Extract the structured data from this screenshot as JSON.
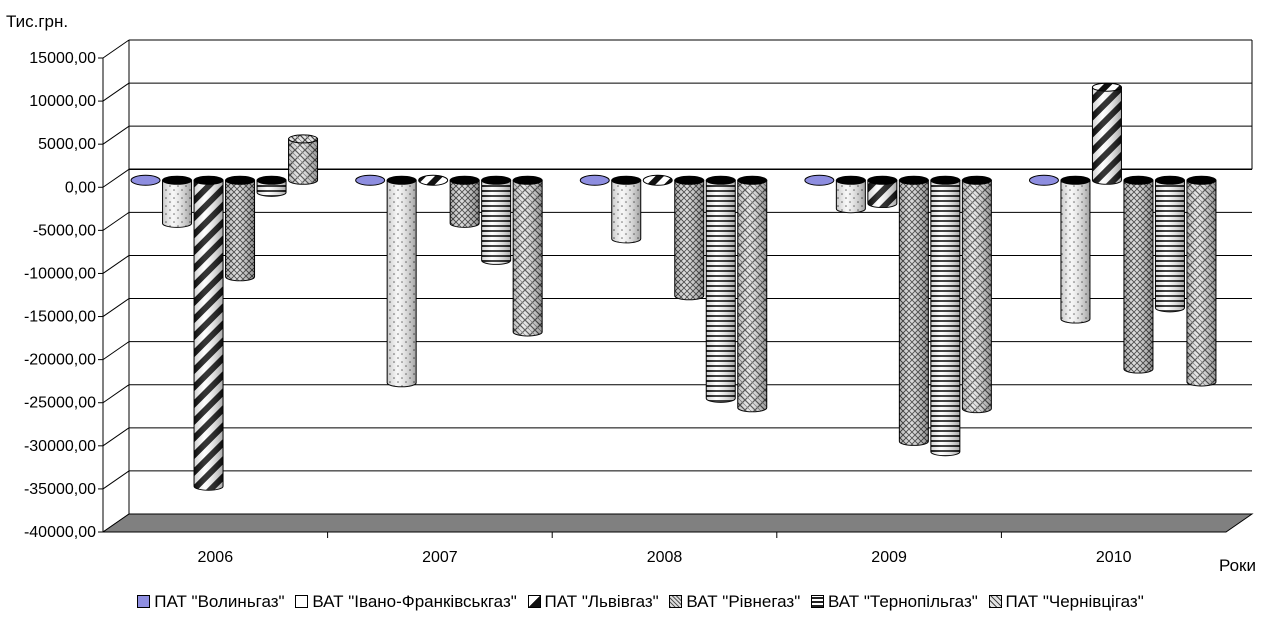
{
  "chart_data": {
    "type": "bar",
    "title": "",
    "ylabel": "Тис.грн.",
    "xlabel": "Роки",
    "categories": [
      "2006",
      "2007",
      "2008",
      "2009",
      "2010"
    ],
    "ylim": [
      -40000,
      15000
    ],
    "yticks": [
      15000,
      10000,
      5000,
      0,
      -5000,
      -10000,
      -15000,
      -20000,
      -25000,
      -30000,
      -35000,
      -40000
    ],
    "ytick_labels": [
      "15000,00",
      "10000,00",
      "5000,00",
      "0,00",
      "-5000,00",
      "-10000,00",
      "-15000,00",
      "-20000,00",
      "-25000,00",
      "-30000,00",
      "-35000,00",
      "-40000,00"
    ],
    "grid": true,
    "legend_position": "bottom",
    "series": [
      {
        "name": "ПАТ \"Волиньгаз\"",
        "values": [
          0,
          0,
          0,
          0,
          0
        ]
      },
      {
        "name": "ВАТ \"Івано-Франківськгаз\"",
        "values": [
          -5000,
          -23500,
          -6800,
          -3300,
          -16100
        ]
      },
      {
        "name": "ПАТ \"Львівгаз\"",
        "values": [
          -35500,
          0,
          0,
          -2700,
          10800
        ]
      },
      {
        "name": "ВАТ \"Рівнегаз\"",
        "values": [
          -11200,
          -5000,
          -13400,
          -30300,
          -21900
        ]
      },
      {
        "name": "ВАТ \"Тернопільгаз\"",
        "values": [
          -1400,
          -9300,
          -25300,
          -31500,
          -14800
        ]
      },
      {
        "name": "ПАТ \"Чернівцігаз\"",
        "values": [
          4800,
          -17600,
          -26400,
          -26500,
          -23400
        ]
      }
    ]
  },
  "legend": {
    "items": [
      "ПАТ \"Волиньгаз\"",
      "ВАТ \"Івано-Франківськгаз\"",
      "ПАТ \"Львівгаз\"",
      "ВАТ \"Рівнегаз\"",
      "ВАТ \"Тернопільгаз\"",
      "ПАТ \"Чернівцігаз\""
    ]
  }
}
